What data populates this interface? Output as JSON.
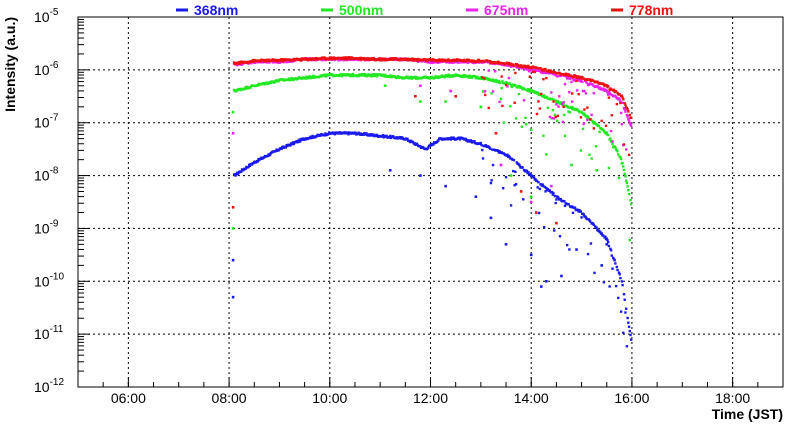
{
  "chart_data": {
    "type": "scatter",
    "title": "",
    "xlabel": "Time (JST)",
    "ylabel": "Intensity (a.u.)",
    "xscale": "linear",
    "yscale": "log",
    "x_unit": "hours (JST)",
    "xlim": [
      5.0,
      19.0
    ],
    "ylim_exponent": [
      -12,
      -5
    ],
    "grid": true,
    "legend_position": "top",
    "x_ticks": [
      {
        "value": 6,
        "label": "06:00"
      },
      {
        "value": 8,
        "label": "08:00"
      },
      {
        "value": 10,
        "label": "10:00"
      },
      {
        "value": 12,
        "label": "12:00"
      },
      {
        "value": 14,
        "label": "14:00"
      },
      {
        "value": 16,
        "label": "16:00"
      },
      {
        "value": 18,
        "label": "18:00"
      }
    ],
    "y_ticks": [
      {
        "exponent": -12,
        "base": "10",
        "sup": "-12"
      },
      {
        "exponent": -11,
        "base": "10",
        "sup": "-11"
      },
      {
        "exponent": -10,
        "base": "10",
        "sup": "-10"
      },
      {
        "exponent": -9,
        "base": "10",
        "sup": "-9"
      },
      {
        "exponent": -8,
        "base": "10",
        "sup": "-8"
      },
      {
        "exponent": -7,
        "base": "10",
        "sup": "-7"
      },
      {
        "exponent": -6,
        "base": "10",
        "sup": "-6"
      },
      {
        "exponent": -5,
        "base": "10",
        "sup": "-5"
      }
    ],
    "series": [
      {
        "name": "368nm",
        "color": "#1a1aee",
        "points": [
          [
            8.1,
            -8.0
          ],
          [
            8.5,
            -7.75
          ],
          [
            9.0,
            -7.5
          ],
          [
            9.5,
            -7.3
          ],
          [
            10.0,
            -7.2
          ],
          [
            10.5,
            -7.2
          ],
          [
            11.0,
            -7.25
          ],
          [
            11.5,
            -7.3
          ],
          [
            11.9,
            -7.5
          ],
          [
            12.2,
            -7.3
          ],
          [
            12.6,
            -7.3
          ],
          [
            13.0,
            -7.4
          ],
          [
            13.5,
            -7.6
          ],
          [
            14.0,
            -8.0
          ],
          [
            14.5,
            -8.4
          ],
          [
            15.0,
            -8.7
          ],
          [
            15.5,
            -9.2
          ],
          [
            15.8,
            -10.0
          ],
          [
            16.0,
            -11.2
          ]
        ],
        "outliers": [
          [
            8.08,
            -10.3
          ],
          [
            8.08,
            -9.6
          ],
          [
            11.2,
            -7.9
          ],
          [
            11.8,
            -8.0
          ],
          [
            12.3,
            -8.2
          ],
          [
            12.9,
            -8.4
          ],
          [
            13.2,
            -8.8
          ],
          [
            13.5,
            -9.3
          ],
          [
            14.0,
            -9.5
          ],
          [
            14.2,
            -10.1
          ],
          [
            14.3,
            -10.0
          ],
          [
            14.6,
            -9.9
          ],
          [
            14.9,
            -9.4
          ],
          [
            15.4,
            -9.7
          ],
          [
            15.5,
            -9.3
          ]
        ]
      },
      {
        "name": "500nm",
        "color": "#22e822",
        "points": [
          [
            8.1,
            -6.4
          ],
          [
            8.5,
            -6.3
          ],
          [
            9.0,
            -6.2
          ],
          [
            9.5,
            -6.15
          ],
          [
            10.0,
            -6.1
          ],
          [
            10.5,
            -6.1
          ],
          [
            11.0,
            -6.1
          ],
          [
            11.5,
            -6.15
          ],
          [
            12.0,
            -6.15
          ],
          [
            12.5,
            -6.1
          ],
          [
            13.0,
            -6.15
          ],
          [
            13.5,
            -6.25
          ],
          [
            14.0,
            -6.4
          ],
          [
            14.5,
            -6.6
          ],
          [
            15.0,
            -6.8
          ],
          [
            15.5,
            -7.2
          ],
          [
            15.8,
            -7.7
          ],
          [
            16.0,
            -8.6
          ]
        ],
        "outliers": [
          [
            8.08,
            -6.8
          ],
          [
            8.08,
            -9.0
          ],
          [
            11.1,
            -6.3
          ],
          [
            11.8,
            -6.6
          ],
          [
            12.3,
            -6.6
          ],
          [
            13.0,
            -6.7
          ],
          [
            13.6,
            -8.0
          ],
          [
            14.0,
            -8.4
          ],
          [
            14.3,
            -7.6
          ],
          [
            14.8,
            -7.8
          ],
          [
            15.3,
            -7.9
          ]
        ]
      },
      {
        "name": "675nm",
        "color": "#ee22ee",
        "points": [
          [
            8.1,
            -5.9
          ],
          [
            8.5,
            -5.85
          ],
          [
            9.0,
            -5.85
          ],
          [
            9.5,
            -5.8
          ],
          [
            10.0,
            -5.8
          ],
          [
            10.5,
            -5.8
          ],
          [
            11.0,
            -5.8
          ],
          [
            11.5,
            -5.8
          ],
          [
            12.0,
            -5.85
          ],
          [
            12.5,
            -5.85
          ],
          [
            13.0,
            -5.85
          ],
          [
            13.5,
            -5.9
          ],
          [
            14.0,
            -6.0
          ],
          [
            14.5,
            -6.1
          ],
          [
            15.0,
            -6.2
          ],
          [
            15.5,
            -6.4
          ],
          [
            15.8,
            -6.6
          ],
          [
            16.0,
            -7.1
          ]
        ],
        "outliers": [
          [
            8.08,
            -7.2
          ],
          [
            11.8,
            -6.3
          ],
          [
            12.4,
            -6.4
          ],
          [
            13.4,
            -7.8
          ],
          [
            14.0,
            -8.5
          ],
          [
            14.4,
            -8.2
          ]
        ]
      },
      {
        "name": "778nm",
        "color": "#ee1111",
        "points": [
          [
            8.1,
            -5.88
          ],
          [
            8.5,
            -5.83
          ],
          [
            9.0,
            -5.82
          ],
          [
            9.5,
            -5.8
          ],
          [
            10.0,
            -5.78
          ],
          [
            10.5,
            -5.78
          ],
          [
            11.0,
            -5.8
          ],
          [
            11.5,
            -5.8
          ],
          [
            12.0,
            -5.82
          ],
          [
            12.5,
            -5.82
          ],
          [
            13.0,
            -5.83
          ],
          [
            13.5,
            -5.88
          ],
          [
            14.0,
            -5.95
          ],
          [
            14.5,
            -6.05
          ],
          [
            15.0,
            -6.15
          ],
          [
            15.5,
            -6.3
          ],
          [
            15.8,
            -6.5
          ],
          [
            16.0,
            -6.95
          ]
        ],
        "outliers": [
          [
            8.08,
            -8.6
          ],
          [
            11.7,
            -6.5
          ],
          [
            12.5,
            -6.5
          ],
          [
            13.3,
            -7.2
          ],
          [
            13.8,
            -8.3
          ],
          [
            14.1,
            -8.7
          ],
          [
            14.5,
            -8.9
          ]
        ]
      }
    ]
  }
}
